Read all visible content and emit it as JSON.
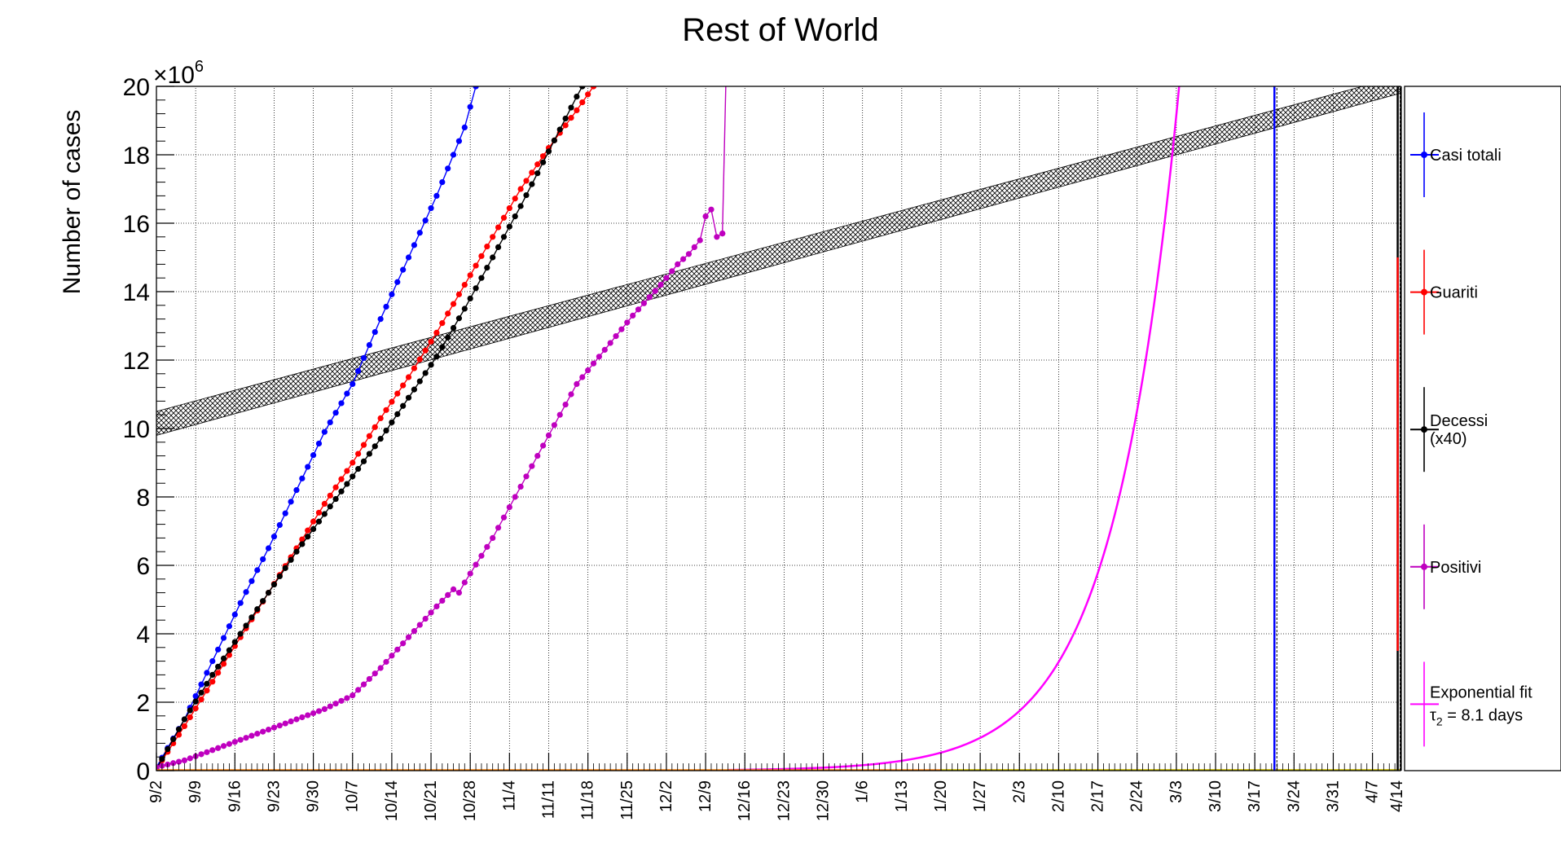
{
  "chart_data": {
    "type": "line",
    "title": "Rest of World",
    "ylabel": "Number of cases",
    "y_exponent_label": "×10",
    "y_exponent_power": "6",
    "ylim": [
      0,
      20
    ],
    "y_ticks": [
      0,
      2,
      4,
      6,
      8,
      10,
      12,
      14,
      16,
      18,
      20
    ],
    "y_tick_labels": [
      "0",
      "2",
      "4",
      "6",
      "8",
      "10",
      "12",
      "14",
      "16",
      "18",
      "20"
    ],
    "x_day_range": [
      0,
      222
    ],
    "x_ticks": [
      {
        "day": 0,
        "label": "9/2"
      },
      {
        "day": 7,
        "label": "9/9"
      },
      {
        "day": 14,
        "label": "9/16"
      },
      {
        "day": 21,
        "label": "9/23"
      },
      {
        "day": 28,
        "label": "9/30"
      },
      {
        "day": 35,
        "label": "10/7"
      },
      {
        "day": 42,
        "label": "10/14"
      },
      {
        "day": 49,
        "label": "10/21"
      },
      {
        "day": 56,
        "label": "10/28"
      },
      {
        "day": 63,
        "label": "11/4"
      },
      {
        "day": 70,
        "label": "11/11"
      },
      {
        "day": 77,
        "label": "11/18"
      },
      {
        "day": 84,
        "label": "11/25"
      },
      {
        "day": 91,
        "label": "12/2"
      },
      {
        "day": 98,
        "label": "12/9"
      },
      {
        "day": 105,
        "label": "12/16"
      },
      {
        "day": 112,
        "label": "12/23"
      },
      {
        "day": 119,
        "label": "12/30"
      },
      {
        "day": 126,
        "label": "1/6"
      },
      {
        "day": 133,
        "label": "1/13"
      },
      {
        "day": 140,
        "label": "1/20"
      },
      {
        "day": 147,
        "label": "1/27"
      },
      {
        "day": 154,
        "label": "2/3"
      },
      {
        "day": 161,
        "label": "2/10"
      },
      {
        "day": 168,
        "label": "2/17"
      },
      {
        "day": 175,
        "label": "2/24"
      },
      {
        "day": 182,
        "label": "3/3"
      },
      {
        "day": 189,
        "label": "3/10"
      },
      {
        "day": 196,
        "label": "3/17"
      },
      {
        "day": 203,
        "label": "3/24"
      },
      {
        "day": 210,
        "label": "3/31"
      },
      {
        "day": 217,
        "label": "4/7"
      },
      {
        "day": 224,
        "label": "4/14"
      }
    ],
    "grid": true,
    "series": [
      {
        "name": "Casi totali",
        "color": "#0000ff",
        "x": [
          0,
          5,
          10,
          15,
          20,
          25,
          30,
          35,
          40,
          45,
          50,
          55,
          57
        ],
        "y": [
          0.1,
          1.5,
          3.2,
          4.9,
          6.5,
          8.2,
          9.9,
          11.3,
          13.2,
          15.0,
          16.8,
          18.8,
          20.0
        ]
      },
      {
        "name": "Guariti",
        "color": "#ff0000",
        "x": [
          0,
          5,
          10,
          15,
          20,
          25,
          30,
          35,
          40,
          45,
          50,
          55,
          60,
          65,
          70,
          75,
          78
        ],
        "y": [
          0.05,
          1.3,
          2.6,
          3.9,
          5.2,
          6.5,
          7.8,
          9.0,
          10.3,
          11.5,
          12.8,
          14.2,
          15.6,
          17.0,
          18.2,
          19.3,
          20.0
        ]
      },
      {
        "name": "Decessi\n(x40)",
        "color": "#000000",
        "x": [
          0,
          5,
          10,
          15,
          20,
          25,
          30,
          35,
          40,
          45,
          50,
          55,
          60,
          65,
          70,
          75,
          76
        ],
        "y": [
          0.05,
          1.5,
          2.8,
          4.0,
          5.2,
          6.4,
          7.5,
          8.6,
          9.7,
          10.9,
          12.1,
          13.5,
          15.0,
          16.5,
          18.1,
          19.7,
          20.0
        ]
      },
      {
        "name": "Positivi",
        "color": "#bf00bf",
        "x": [
          0,
          5,
          10,
          15,
          20,
          25,
          30,
          35,
          40,
          45,
          50,
          53,
          54,
          55,
          60,
          65,
          70,
          75,
          80,
          85,
          90,
          93,
          95,
          97,
          98,
          99,
          100,
          101
        ],
        "y": [
          0.1,
          0.3,
          0.6,
          0.9,
          1.2,
          1.5,
          1.8,
          2.2,
          3.0,
          3.9,
          4.8,
          5.3,
          5.2,
          5.5,
          6.8,
          8.3,
          9.8,
          11.3,
          12.3,
          13.3,
          14.2,
          14.8,
          15.1,
          15.5,
          16.2,
          16.4,
          15.6,
          15.7
        ]
      },
      {
        "name": "Exponential fit",
        "color": "#ff00ff",
        "fit_label": "τ = 8.1 days",
        "fit_label_sub": "2",
        "doubling_days": 8.1,
        "x_start": 102,
        "x_end": 184,
        "y_at_3_3": 20.0
      }
    ],
    "bands": [
      {
        "color": "#000000",
        "x": [
          0,
          222
        ],
        "y_low": [
          9.8,
          19.8
        ],
        "y_high": [
          10.5,
          20.3
        ],
        "hatch": "cross"
      }
    ],
    "vertical_markers": [
      {
        "day": 199.5,
        "color": "#0000ff"
      },
      {
        "day": 221.5,
        "color": "#000000"
      }
    ],
    "legend_placement": "right"
  }
}
